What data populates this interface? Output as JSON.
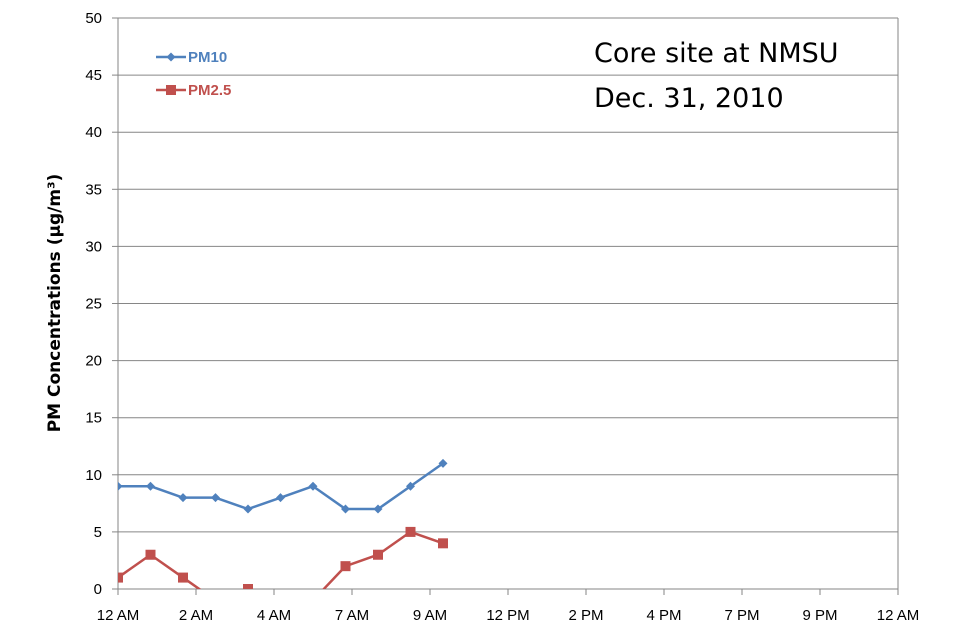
{
  "chart_data": {
    "type": "line",
    "title": "",
    "annotations": [
      "Core site at NMSU",
      "Dec. 31, 2010"
    ],
    "xlabel": "",
    "ylabel": "PM Concentrations (µg/m³)",
    "ylim": [
      0,
      50
    ],
    "yticks": [
      "0",
      "5",
      "10",
      "15",
      "20",
      "25",
      "30",
      "35",
      "40",
      "45",
      "50"
    ],
    "xticks": [
      "12 AM",
      "2 AM",
      "4 AM",
      "7 AM",
      "9 AM",
      "12 PM",
      "2 PM",
      "4 PM",
      "7 PM",
      "9 PM",
      "12 AM"
    ],
    "x_hours": [
      0,
      1,
      2,
      3,
      4,
      5,
      6,
      7,
      8,
      9,
      10
    ],
    "grid": true,
    "legend_position": "top-left",
    "series": [
      {
        "name": "PM10",
        "color": "#4F81BD",
        "marker": "diamond",
        "values": [
          9,
          9,
          8,
          8,
          7,
          8,
          9,
          7,
          7,
          9,
          11
        ]
      },
      {
        "name": "PM2.5",
        "color": "#C0504D",
        "marker": "square",
        "values": [
          1,
          3,
          1,
          -1,
          0,
          -2,
          -1,
          2,
          3,
          5,
          4
        ]
      }
    ]
  }
}
